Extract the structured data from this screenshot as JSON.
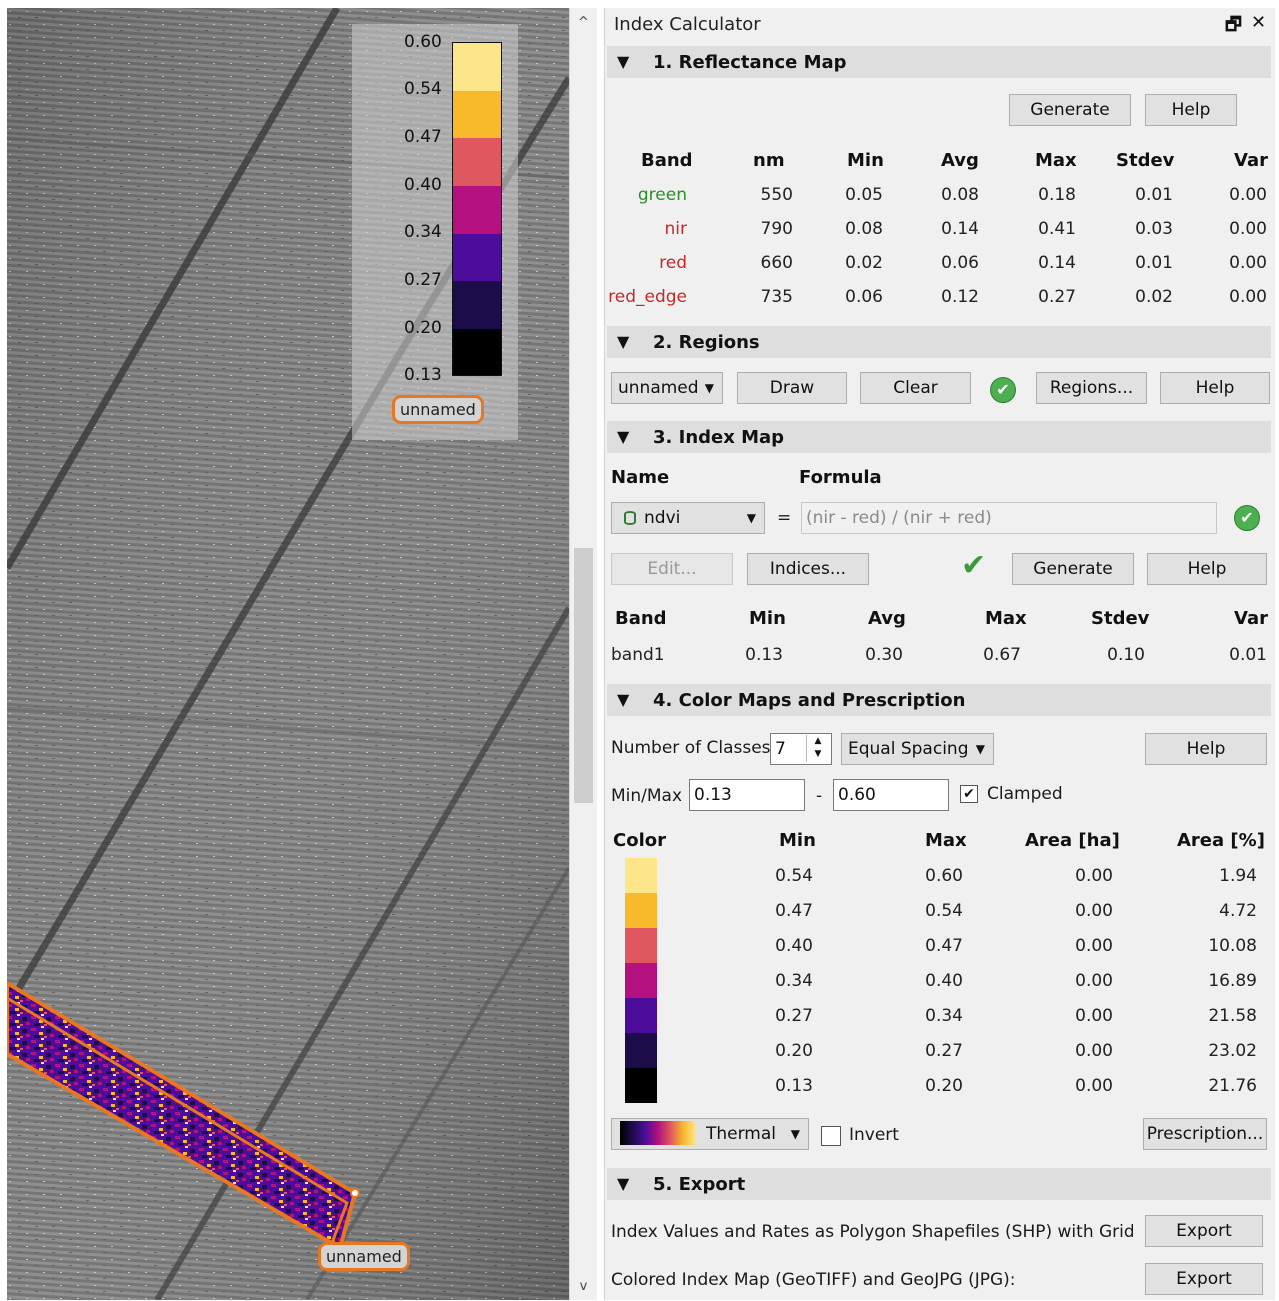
{
  "legend": {
    "ticks": [
      "0.60",
      "0.54",
      "0.47",
      "0.40",
      "0.34",
      "0.27",
      "0.20",
      "0.13"
    ],
    "region_label": "unnamed"
  },
  "map": {
    "region_label": "unnamed"
  },
  "panel": {
    "title": "Index Calculator",
    "float_icon": "🗗",
    "close_icon": "✕"
  },
  "reflectance": {
    "header": "1. Reflectance Map",
    "generate_label": "Generate",
    "help_label": "Help",
    "columns": [
      "Band",
      "nm",
      "Min",
      "Avg",
      "Max",
      "Stdev",
      "Var"
    ],
    "rows": [
      {
        "band": "green",
        "nm": "550",
        "min": "0.05",
        "avg": "0.08",
        "max": "0.18",
        "stdev": "0.01",
        "var": "0.00",
        "color": "#2e8b2e"
      },
      {
        "band": "nir",
        "nm": "790",
        "min": "0.08",
        "avg": "0.14",
        "max": "0.41",
        "stdev": "0.03",
        "var": "0.00",
        "color": "#c62828"
      },
      {
        "band": "red",
        "nm": "660",
        "min": "0.02",
        "avg": "0.06",
        "max": "0.14",
        "stdev": "0.01",
        "var": "0.00",
        "color": "#c62828"
      },
      {
        "band": "red_edge",
        "nm": "735",
        "min": "0.06",
        "avg": "0.12",
        "max": "0.27",
        "stdev": "0.02",
        "var": "0.00",
        "color": "#c62828"
      }
    ]
  },
  "regions": {
    "header": "2. Regions",
    "selected": "unnamed",
    "draw_label": "Draw",
    "clear_label": "Clear",
    "regions_label": "Regions...",
    "help_label": "Help"
  },
  "index_map": {
    "header": "3. Index Map",
    "name_label": "Name",
    "formula_label": "Formula",
    "name_value": "ndvi",
    "equals": "=",
    "formula_value": "(nir - red) / (nir + red)",
    "edit_label": "Edit...",
    "indices_label": "Indices...",
    "generate_label": "Generate",
    "help_label": "Help",
    "columns": [
      "Band",
      "Min",
      "Avg",
      "Max",
      "Stdev",
      "Var"
    ],
    "row": {
      "band": "band1",
      "min": "0.13",
      "avg": "0.30",
      "max": "0.67",
      "stdev": "0.10",
      "var": "0.01"
    }
  },
  "color_maps": {
    "header": "4. Color Maps and Prescription",
    "classes_label": "Number of Classes",
    "classes_value": "7",
    "spacing_value": "Equal Spacing",
    "help_label": "Help",
    "minmax_label": "Min/Max",
    "min_value": "0.13",
    "dash": "-",
    "max_value": "0.60",
    "clamped_label": "Clamped",
    "clamped_checked": true,
    "columns": [
      "Color",
      "Min",
      "Max",
      "Area [ha]",
      "Area [%]"
    ],
    "classes": [
      {
        "color": "#fde68a",
        "min": "0.54",
        "max": "0.60",
        "area_ha": "0.00",
        "area_pct": "1.94"
      },
      {
        "color": "#f8b92b",
        "min": "0.47",
        "max": "0.54",
        "area_ha": "0.00",
        "area_pct": "4.72"
      },
      {
        "color": "#e0585f",
        "min": "0.40",
        "max": "0.47",
        "area_ha": "0.00",
        "area_pct": "10.08"
      },
      {
        "color": "#b4107f",
        "min": "0.34",
        "max": "0.40",
        "area_ha": "0.00",
        "area_pct": "16.89"
      },
      {
        "color": "#4b0d9a",
        "min": "0.27",
        "max": "0.34",
        "area_ha": "0.00",
        "area_pct": "21.58"
      },
      {
        "color": "#1d0c4a",
        "min": "0.20",
        "max": "0.27",
        "area_ha": "0.00",
        "area_pct": "23.02"
      },
      {
        "color": "#000000",
        "min": "0.13",
        "max": "0.20",
        "area_ha": "0.00",
        "area_pct": "21.76"
      }
    ],
    "colormap_label": "Thermal",
    "invert_label": "Invert",
    "invert_checked": false,
    "prescription_label": "Prescription..."
  },
  "export": {
    "header": "5. Export",
    "row1_label": "Index Values and Rates as Polygon Shapefiles (SHP) with Grid Size",
    "row1_button": "Export",
    "row2_label": "Colored Index Map (GeoTIFF) and GeoJPG (JPG):",
    "row2_button": "Export"
  },
  "colors": {
    "region_outline": "#e87722",
    "ok_green": "#4caf50",
    "section_bg": "#dedede"
  },
  "icons": {
    "section_arrow": "▼",
    "dropdown_caret": "▼",
    "check_mark": "✔",
    "spin_up": "▲",
    "spin_down": "▼",
    "scroll_up": "^",
    "scroll_down": "v"
  }
}
